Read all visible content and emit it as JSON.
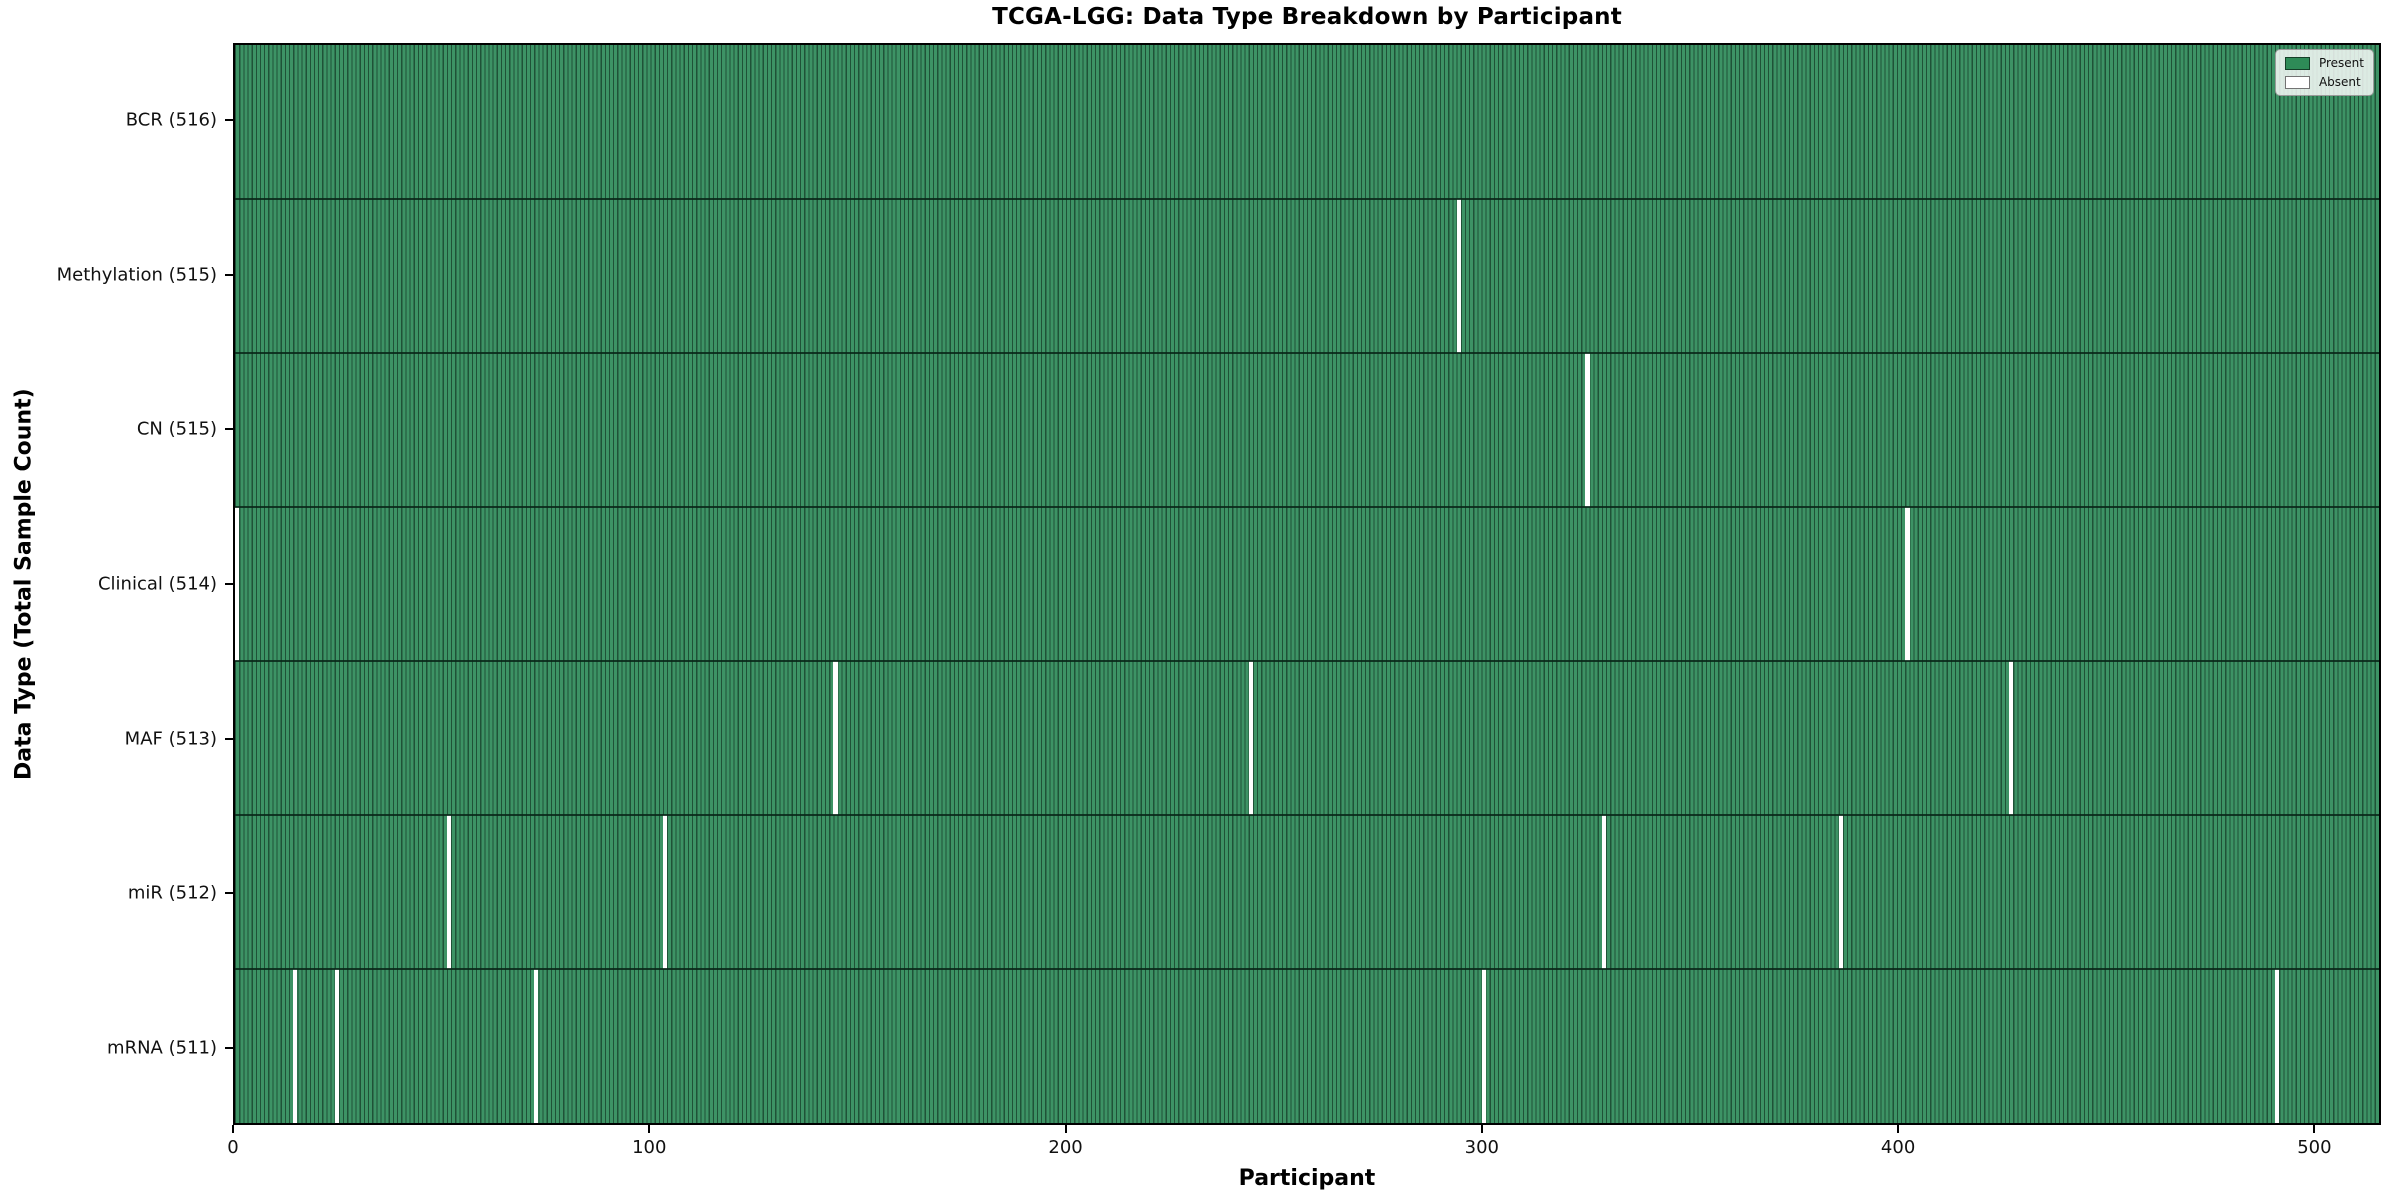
{
  "chart_data": {
    "type": "heatmap",
    "title": "TCGA-LGG: Data Type Breakdown by Participant",
    "xlabel": "Participant",
    "ylabel": "Data Type (Total Sample Count)",
    "x_ticks": [
      0,
      100,
      200,
      300,
      400,
      500
    ],
    "x_range": [
      0,
      516
    ],
    "n_participants": 516,
    "grid": false,
    "legend_position": "upper right",
    "colors": {
      "present": "#3d9365",
      "absent": "#ffffff",
      "bar_edge": "#1f5237",
      "row_divider": "#082617",
      "spine": "#000000"
    },
    "legend": [
      {
        "label": "Present",
        "color": "#2e8b57"
      },
      {
        "label": "Absent",
        "color": "#ffffff"
      }
    ],
    "rows": [
      {
        "label": "BCR (516)",
        "data_type": "BCR",
        "total": 516,
        "absent_at": []
      },
      {
        "label": "Methylation (515)",
        "data_type": "Methylation",
        "total": 515,
        "absent_at": [
          294
        ]
      },
      {
        "label": "CN (515)",
        "data_type": "CN",
        "total": 515,
        "absent_at": [
          325
        ]
      },
      {
        "label": "Clinical (514)",
        "data_type": "Clinical",
        "total": 514,
        "absent_at": [
          0,
          402
        ]
      },
      {
        "label": "MAF (513)",
        "data_type": "MAF",
        "total": 513,
        "absent_at": [
          144,
          244,
          427
        ]
      },
      {
        "label": "miR (512)",
        "data_type": "miR",
        "total": 512,
        "absent_at": [
          51,
          103,
          329,
          386
        ]
      },
      {
        "label": "mRNA (511)",
        "data_type": "mRNA",
        "total": 511,
        "absent_at": [
          14,
          24,
          72,
          300,
          491
        ]
      }
    ]
  }
}
